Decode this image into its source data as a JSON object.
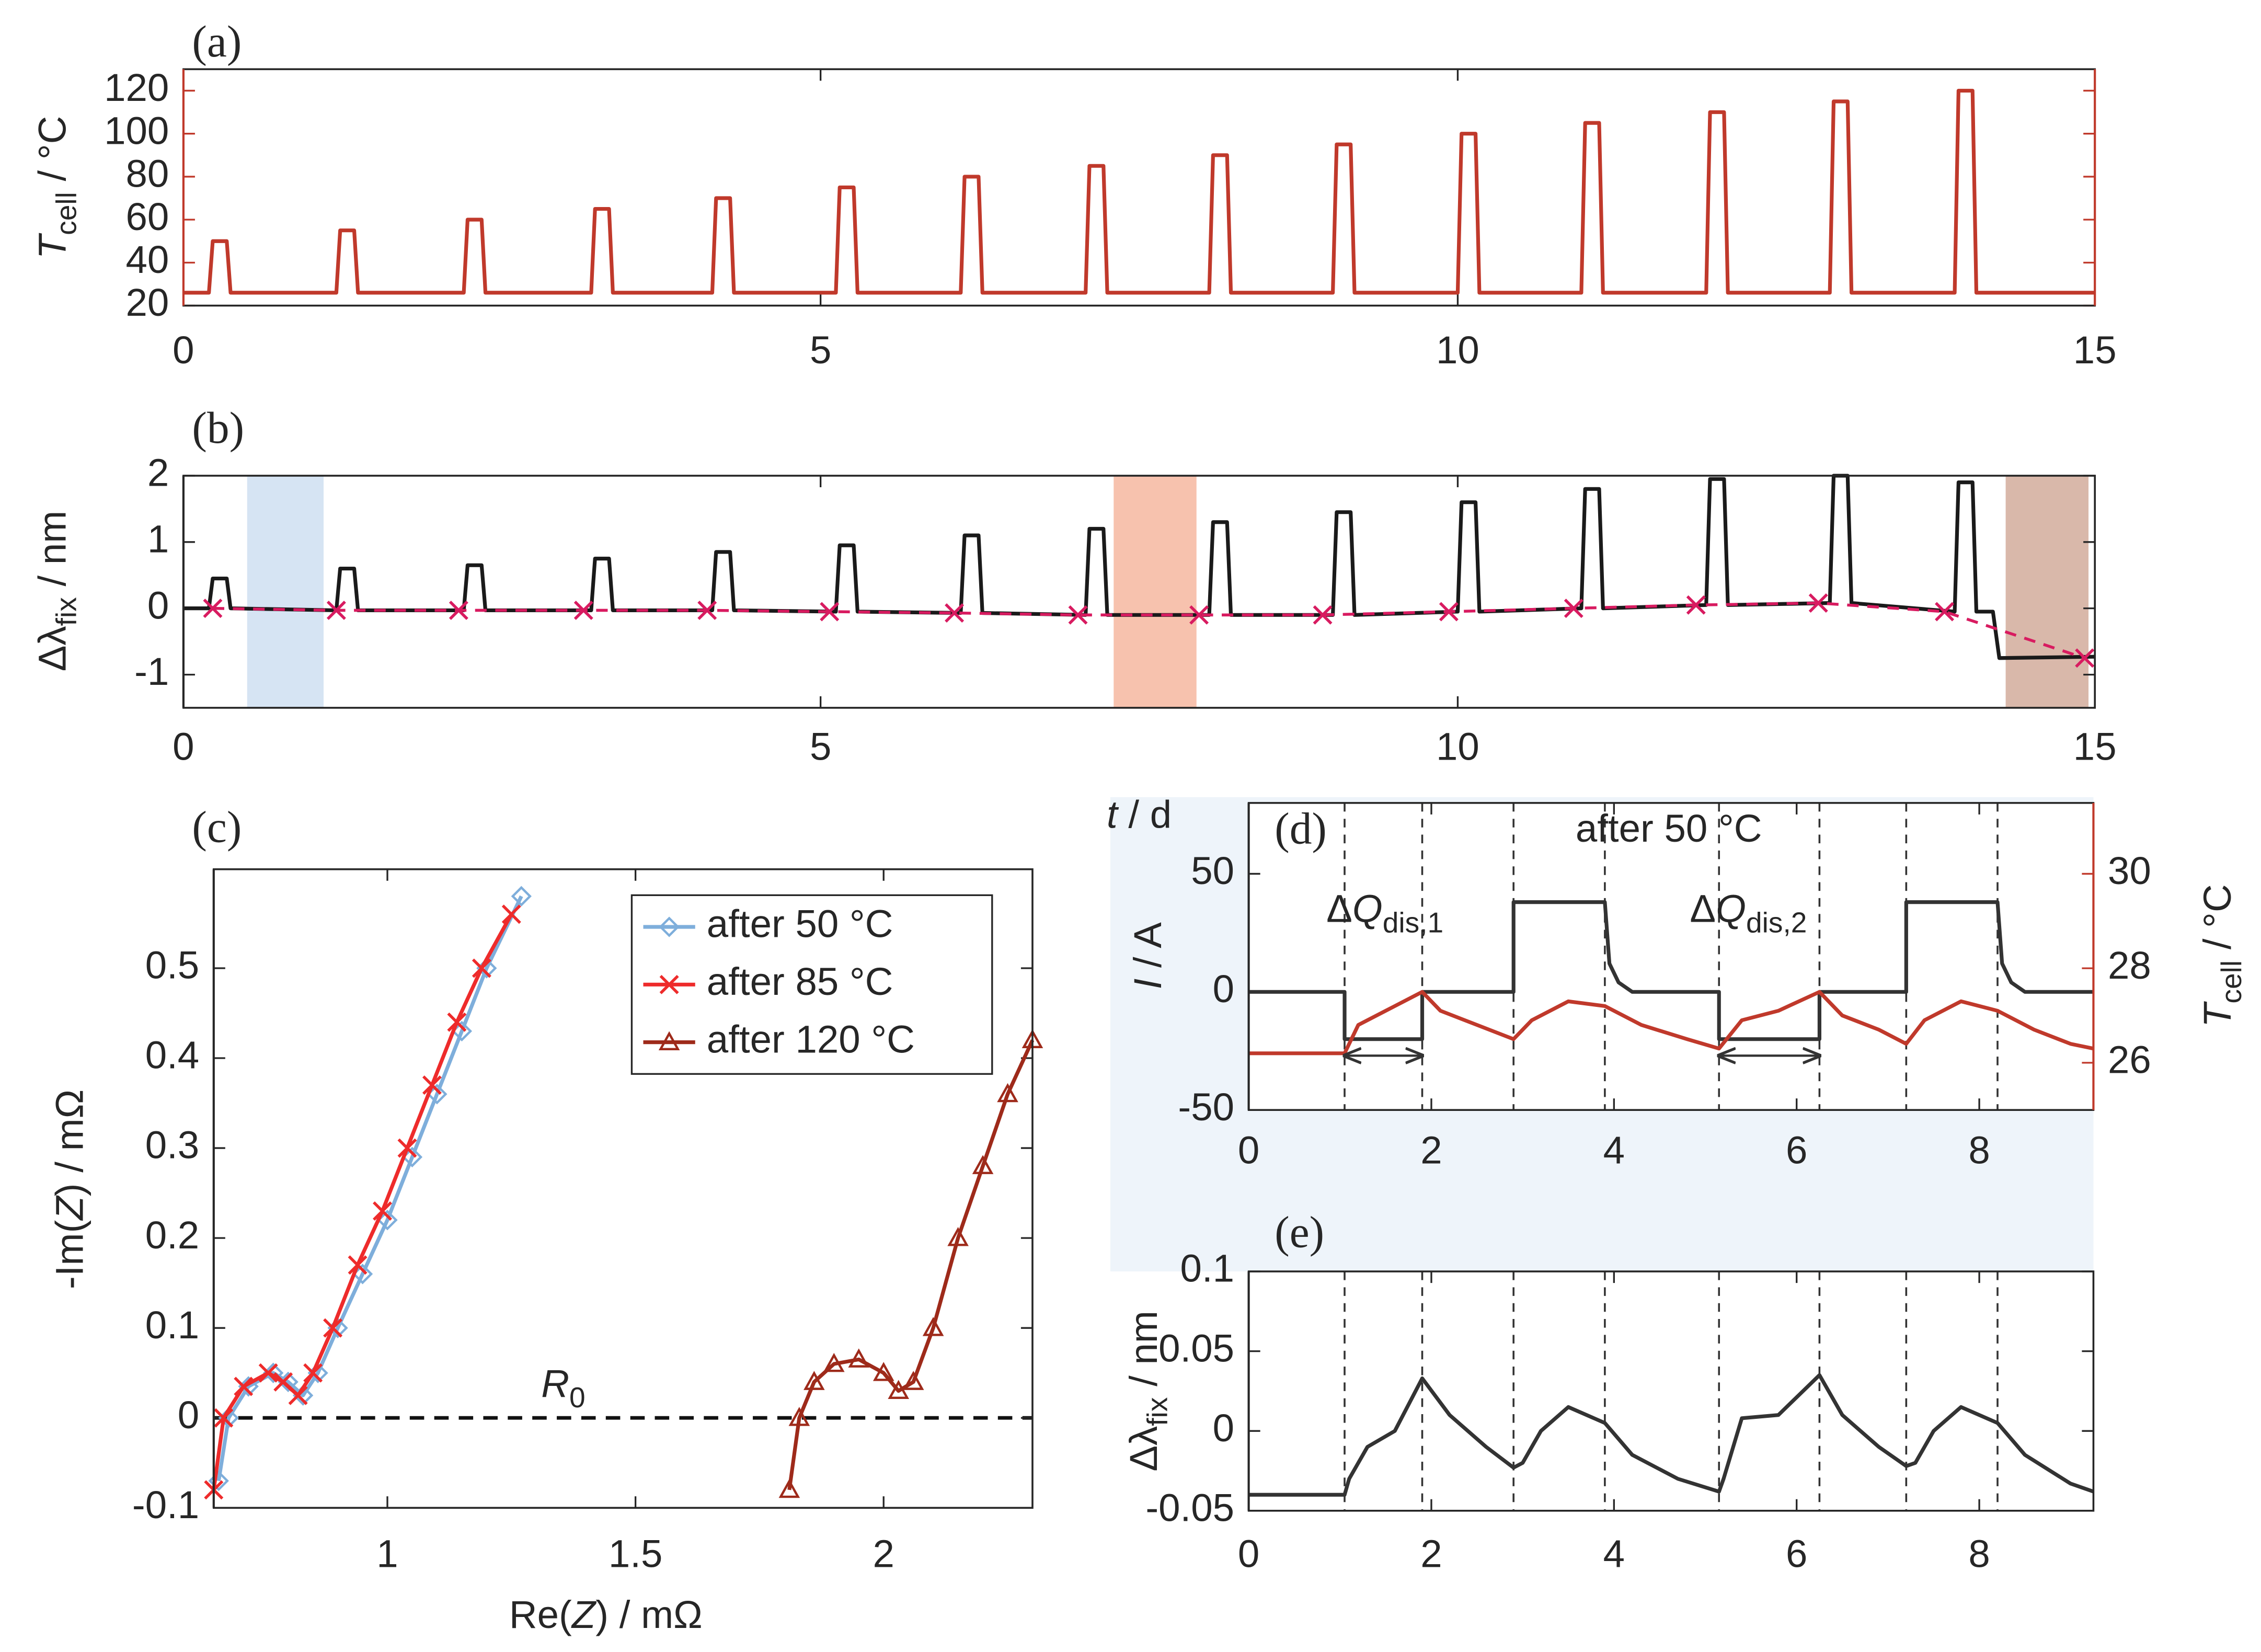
{
  "chart_data": [
    {
      "type": "line",
      "label": "(a)",
      "axis_color": "#c0392b",
      "ylabel": [
        [
          "T",
          "i"
        ],
        [
          "cell",
          "sub"
        ],
        [
          " / °C",
          "n"
        ]
      ],
      "xlim": [
        0,
        15
      ],
      "xticks": [
        0,
        5,
        10,
        15
      ],
      "ylim": [
        20,
        130
      ],
      "yticks": [
        20,
        40,
        60,
        80,
        100,
        120
      ],
      "series": [
        {
          "color": "#c0392b",
          "x": [
            0,
            0.2,
            0.23,
            0.34,
            0.37,
            1.2,
            1.23,
            1.34,
            1.37,
            2.2,
            2.23,
            2.34,
            2.37,
            3.2,
            3.23,
            3.34,
            3.37,
            4.15,
            4.18,
            4.29,
            4.32,
            5.12,
            5.15,
            5.26,
            5.29,
            6.1,
            6.13,
            6.24,
            6.27,
            7.08,
            7.11,
            7.22,
            7.25,
            8.05,
            8.08,
            8.19,
            8.22,
            9.02,
            9.05,
            9.16,
            9.19,
            10.0,
            10.03,
            10.14,
            10.17,
            10.97,
            11.0,
            11.11,
            11.14,
            11.95,
            11.98,
            12.09,
            12.12,
            12.92,
            12.95,
            13.06,
            13.09,
            13.9,
            13.93,
            14.04,
            14.07,
            15
          ],
          "values": [
            26,
            26,
            50,
            50,
            26,
            26,
            55,
            55,
            26,
            26,
            60,
            60,
            26,
            26,
            65,
            65,
            26,
            26,
            70,
            70,
            26,
            26,
            75,
            75,
            26,
            26,
            80,
            80,
            26,
            26,
            85,
            85,
            26,
            26,
            90,
            90,
            26,
            26,
            95,
            95,
            26,
            26,
            100,
            100,
            26,
            26,
            105,
            105,
            26,
            26,
            110,
            110,
            26,
            26,
            115,
            115,
            26,
            26,
            120,
            120,
            26,
            26
          ]
        }
      ]
    },
    {
      "type": "line",
      "label": "(b)",
      "ylabel": [
        [
          "Δλ",
          "n"
        ],
        [
          "fix",
          "sub"
        ],
        [
          " / nm",
          "n"
        ]
      ],
      "xlabel": [
        [
          "t",
          "i"
        ],
        [
          " / d",
          "n"
        ]
      ],
      "xlim": [
        0,
        15
      ],
      "xticks": [
        0,
        5,
        10,
        15
      ],
      "ylim": [
        -1.5,
        2
      ],
      "yticks": [
        -1,
        0,
        1,
        2
      ],
      "spans": [
        {
          "x0": 0.5,
          "x1": 1.1,
          "color": "#d6e4f3"
        },
        {
          "x0": 7.3,
          "x1": 7.95,
          "color": "#f7c2ae"
        },
        {
          "x0": 14.3,
          "x1": 14.95,
          "color": "#d9b8aa"
        }
      ],
      "series": [
        {
          "color": "#1a1a1a",
          "x": [
            0,
            0.2,
            0.23,
            0.34,
            0.37,
            1.2,
            1.23,
            1.34,
            1.37,
            2.2,
            2.23,
            2.34,
            2.37,
            3.2,
            3.23,
            3.34,
            3.37,
            4.15,
            4.18,
            4.29,
            4.32,
            5.12,
            5.15,
            5.26,
            5.29,
            6.1,
            6.13,
            6.24,
            6.27,
            7.08,
            7.11,
            7.22,
            7.25,
            8.05,
            8.08,
            8.19,
            8.22,
            9.02,
            9.05,
            9.16,
            9.19,
            10.0,
            10.03,
            10.14,
            10.17,
            10.97,
            11.0,
            11.11,
            11.14,
            11.95,
            11.98,
            12.09,
            12.12,
            12.92,
            12.95,
            13.06,
            13.09,
            13.9,
            13.93,
            14.04,
            14.07,
            14.2,
            14.25,
            15
          ],
          "values": [
            0,
            0,
            0.45,
            0.45,
            0,
            -0.03,
            0.6,
            0.6,
            -0.03,
            -0.03,
            0.65,
            0.65,
            -0.03,
            -0.03,
            0.75,
            0.75,
            -0.03,
            -0.03,
            0.85,
            0.85,
            -0.03,
            -0.05,
            0.95,
            0.95,
            -0.05,
            -0.07,
            1.1,
            1.1,
            -0.07,
            -0.1,
            1.2,
            1.2,
            -0.1,
            -0.1,
            1.3,
            1.3,
            -0.1,
            -0.1,
            1.45,
            1.45,
            -0.1,
            -0.05,
            1.6,
            1.6,
            -0.05,
            0,
            1.8,
            1.8,
            0,
            0.05,
            1.95,
            1.95,
            0.05,
            0.08,
            2.0,
            2.0,
            0.08,
            -0.05,
            1.9,
            1.9,
            -0.05,
            -0.05,
            -0.75,
            -0.73
          ]
        },
        {
          "color": "#d81b60",
          "dash": true,
          "marker": "x",
          "x": [
            0.23,
            1.2,
            2.16,
            3.14,
            4.11,
            5.07,
            6.05,
            7.02,
            7.97,
            8.94,
            9.93,
            10.91,
            11.87,
            12.83,
            13.82,
            14.92
          ],
          "values": [
            0,
            -0.03,
            -0.03,
            -0.03,
            -0.03,
            -0.05,
            -0.07,
            -0.1,
            -0.1,
            -0.1,
            -0.05,
            0,
            0.05,
            0.08,
            -0.05,
            -0.75
          ]
        }
      ]
    },
    {
      "type": "line",
      "label": "(c)",
      "xlabel": [
        [
          "Re(",
          "n"
        ],
        [
          "Z",
          "i"
        ],
        [
          ") / mΩ",
          "n"
        ]
      ],
      "ylabel": [
        [
          "-Im(",
          "n"
        ],
        [
          "Z",
          "i"
        ],
        [
          ") / mΩ",
          "n"
        ]
      ],
      "xlim": [
        0.65,
        2.3
      ],
      "xticks": [
        1,
        1.5,
        2
      ],
      "ylim": [
        -0.1,
        0.61
      ],
      "yticks": [
        -0.1,
        0,
        0.1,
        0.2,
        0.3,
        0.4,
        0.5
      ],
      "hlines": [
        0
      ],
      "legend": "upper right",
      "annotations": [
        {
          "x": 1.31,
          "y": 0.035,
          "text": [
            [
              "R",
              "i"
            ],
            [
              "0",
              "sub"
            ]
          ]
        }
      ],
      "series": [
        {
          "name": "after   50 °C",
          "color": "#7eaedb",
          "marker": "diamond",
          "x": [
            0.66,
            0.68,
            0.72,
            0.77,
            0.8,
            0.83,
            0.86,
            0.9,
            0.95,
            1.0,
            1.05,
            1.1,
            1.15,
            1.2,
            1.27
          ],
          "values": [
            -0.07,
            0.0,
            0.035,
            0.05,
            0.04,
            0.025,
            0.05,
            0.1,
            0.16,
            0.22,
            0.29,
            0.36,
            0.43,
            0.5,
            0.58
          ]
        },
        {
          "name": "after   85 °C",
          "color": "#ee2b2b",
          "marker": "x",
          "x": [
            0.65,
            0.67,
            0.71,
            0.76,
            0.79,
            0.82,
            0.85,
            0.89,
            0.94,
            0.99,
            1.04,
            1.09,
            1.14,
            1.19,
            1.25
          ],
          "values": [
            -0.08,
            0.0,
            0.035,
            0.05,
            0.04,
            0.025,
            0.05,
            0.1,
            0.17,
            0.23,
            0.3,
            0.37,
            0.44,
            0.5,
            0.56
          ]
        },
        {
          "name": "after 120 °C",
          "color": "#9e2a1a",
          "marker": "triangle",
          "x": [
            1.81,
            1.83,
            1.86,
            1.9,
            1.95,
            2.0,
            2.03,
            2.06,
            2.1,
            2.15,
            2.2,
            2.25,
            2.3
          ],
          "values": [
            -0.08,
            0,
            0.04,
            0.06,
            0.065,
            0.05,
            0.03,
            0.04,
            0.1,
            0.2,
            0.28,
            0.36,
            0.42
          ]
        }
      ]
    },
    {
      "type": "line",
      "label": "(d)",
      "ylabel": [
        [
          "I",
          "i"
        ],
        [
          " / A",
          "n"
        ]
      ],
      "y2label": [
        [
          "T",
          "i"
        ],
        [
          "cell",
          "sub"
        ],
        [
          " / °C",
          "n"
        ]
      ],
      "y2_color": "#c0392b",
      "xlim": [
        0,
        9.25
      ],
      "xticks": [
        0,
        2,
        4,
        6,
        8
      ],
      "ylim": [
        -50,
        80
      ],
      "yticks": [
        -50,
        0,
        50
      ],
      "y2lim": [
        25,
        31.5
      ],
      "y2ticks": [
        26,
        28,
        30
      ],
      "vlines": [
        1.05,
        1.9,
        2.9,
        3.9,
        5.15,
        6.25,
        7.2,
        8.2
      ],
      "arrows": [
        {
          "x0": 1.05,
          "x1": 1.9,
          "y": -27
        },
        {
          "x0": 5.15,
          "x1": 6.25,
          "y": -27
        }
      ],
      "annotations": [
        {
          "x": 0.85,
          "y": 34,
          "text": [
            [
              "Δ",
              "n"
            ],
            [
              "Q",
              "i"
            ],
            [
              "dis,1",
              "sub"
            ]
          ]
        },
        {
          "x": 4.83,
          "y": 34,
          "text": [
            [
              "Δ",
              "n"
            ],
            [
              "Q",
              "i"
            ],
            [
              "dis,2",
              "sub"
            ]
          ]
        },
        {
          "x": 4.6,
          "y": 68,
          "color": "#6fa6d8",
          "text": [
            [
              "after 50 °C",
              "n"
            ]
          ]
        }
      ],
      "series": [
        {
          "color": "#333333",
          "x": [
            0,
            1.05,
            1.05,
            1.9,
            1.9,
            2.9,
            2.9,
            3.9,
            3.95,
            4.05,
            4.2,
            5.15,
            5.15,
            6.25,
            6.25,
            7.2,
            7.2,
            8.2,
            8.25,
            8.35,
            8.5,
            9.25
          ],
          "values": [
            0,
            0,
            -20,
            -20,
            0,
            0,
            38,
            38,
            12,
            4,
            0,
            0,
            -20,
            -20,
            0,
            0,
            38,
            38,
            12,
            4,
            0,
            0
          ]
        },
        {
          "color": "#c0392b",
          "axis": "y2",
          "x": [
            0,
            1.05,
            1.2,
            1.5,
            1.9,
            2.1,
            2.5,
            2.9,
            3.1,
            3.5,
            3.9,
            4.3,
            4.8,
            5.15,
            5.4,
            5.8,
            6.25,
            6.5,
            6.9,
            7.2,
            7.4,
            7.8,
            8.2,
            8.6,
            9.0,
            9.25
          ],
          "values": [
            26.2,
            26.2,
            26.8,
            27.1,
            27.5,
            27.1,
            26.8,
            26.5,
            26.9,
            27.3,
            27.2,
            26.8,
            26.5,
            26.3,
            26.9,
            27.1,
            27.5,
            27.0,
            26.7,
            26.4,
            26.9,
            27.3,
            27.1,
            26.7,
            26.4,
            26.3
          ]
        }
      ]
    },
    {
      "type": "line",
      "label": "(e)",
      "ylabel": [
        [
          "Δλ",
          "n"
        ],
        [
          "fix",
          "sub"
        ],
        [
          " / nm",
          "n"
        ]
      ],
      "xlim": [
        0,
        9.25
      ],
      "xticks": [
        0,
        2,
        4,
        6,
        8
      ],
      "ylim": [
        -0.05,
        0.1
      ],
      "yticks": [
        -0.05,
        0,
        0.05,
        0.1
      ],
      "vlines": [
        1.05,
        1.9,
        2.9,
        3.9,
        5.15,
        6.25,
        7.2,
        8.2
      ],
      "series": [
        {
          "color": "#333333",
          "x": [
            0,
            1.05,
            1.1,
            1.3,
            1.6,
            1.9,
            2.2,
            2.6,
            2.9,
            3.0,
            3.2,
            3.5,
            3.9,
            4.2,
            4.7,
            5.15,
            5.2,
            5.4,
            5.8,
            6.25,
            6.5,
            6.9,
            7.2,
            7.3,
            7.5,
            7.8,
            8.2,
            8.5,
            9.0,
            9.25
          ],
          "values": [
            -0.04,
            -0.04,
            -0.03,
            -0.01,
            0.0,
            0.033,
            0.01,
            -0.01,
            -0.023,
            -0.02,
            0.0,
            0.015,
            0.005,
            -0.015,
            -0.03,
            -0.038,
            -0.03,
            0.008,
            0.01,
            0.035,
            0.01,
            -0.01,
            -0.022,
            -0.02,
            0.0,
            0.015,
            0.005,
            -0.015,
            -0.033,
            -0.038
          ]
        }
      ]
    }
  ]
}
